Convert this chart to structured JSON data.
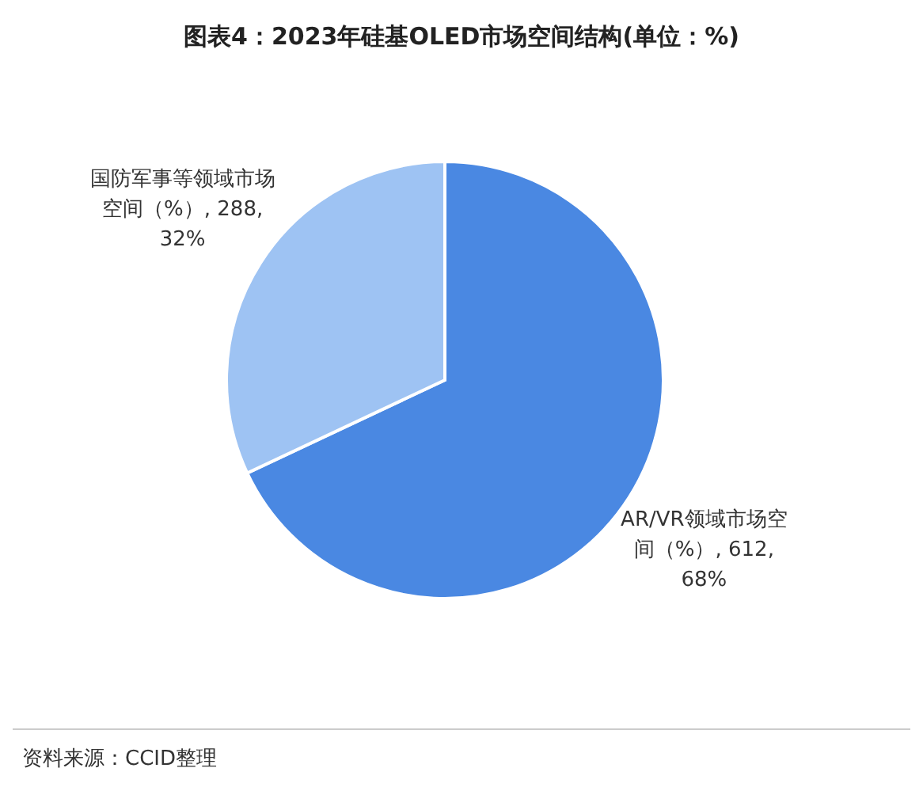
{
  "chart_data": {
    "type": "pie",
    "title": "图表4：2023年硅基OLED市场空间结构(单位：%)",
    "categories": [
      "AR/VR领域市场空间（%）",
      "国防军事等领域市场空间（%）"
    ],
    "values": [
      612,
      288
    ],
    "value_labels": [
      "612, 68%",
      "288, 32%"
    ],
    "colors": [
      "#4a88e2",
      "#9ec3f3"
    ],
    "annotations": [
      "资料来源：CCID整理"
    ]
  }
}
